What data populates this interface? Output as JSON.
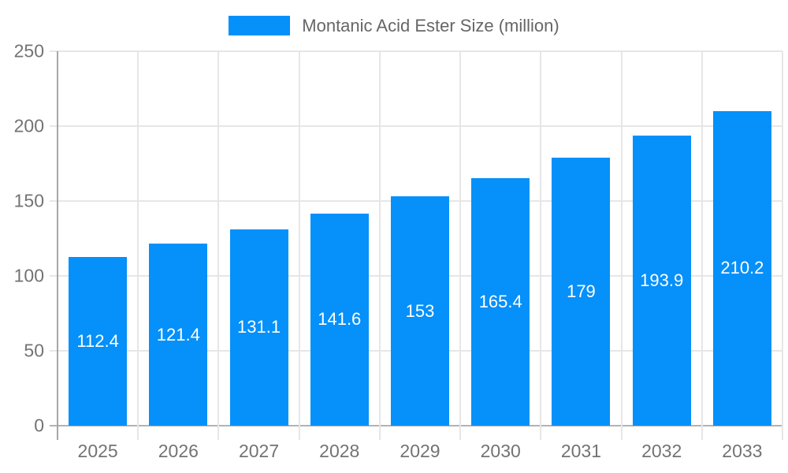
{
  "legend": {
    "label": "Montanic Acid Ester Size (million)",
    "swatch_color": "#0590fa"
  },
  "chart_data": {
    "type": "bar",
    "title": "Montanic Acid Ester Size (million)",
    "categories": [
      "2025",
      "2026",
      "2027",
      "2028",
      "2029",
      "2030",
      "2031",
      "2032",
      "2033"
    ],
    "values": [
      112.4,
      121.4,
      131.1,
      141.6,
      153,
      165.4,
      179,
      193.9,
      210.2
    ],
    "series_name": "Montanic Acid Ester Size (million)",
    "xlabel": "",
    "ylabel": "",
    "ylim": [
      0,
      250
    ],
    "yticks": [
      0,
      50,
      100,
      150,
      200,
      250
    ],
    "grid": true,
    "legend_position": "top",
    "bar_color": "#0590fa",
    "value_label_color": "#ffffff",
    "axis_label_color": "#737373",
    "gridline_color": "#e6e6e6",
    "axis_line_color": "#a6a6a6",
    "baseline_color": "#b3b3b3"
  }
}
